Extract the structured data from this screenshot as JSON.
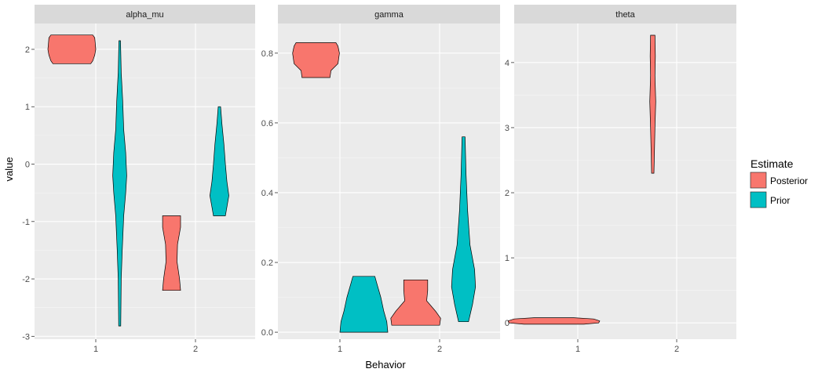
{
  "chart_data": {
    "type": "violin",
    "xlabel": "Behavior",
    "ylabel": "value",
    "x_categories": [
      "1",
      "2"
    ],
    "legend": {
      "title": "Estimate",
      "placement": "right",
      "entries": [
        {
          "name": "Posterior",
          "color": "#F8766D"
        },
        {
          "name": "Prior",
          "color": "#00BFC4"
        }
      ]
    },
    "grid": true,
    "panel_background": "#EBEBEB",
    "strip_background": "#D9D9D9",
    "facets": [
      {
        "name": "alpha_mu",
        "ylim": [
          -3.05,
          2.45
        ],
        "y_ticks": [
          -3,
          -2,
          -1,
          0,
          1,
          2
        ],
        "y_tick_labels": [
          "-3",
          "-2",
          "-1",
          "0",
          "1",
          "2"
        ],
        "violins": [
          {
            "estimate": "Posterior",
            "behavior": "1",
            "profile": [
              [
                1.75,
                0.19
              ],
              [
                1.8,
                0.21
              ],
              [
                1.9,
                0.23
              ],
              [
                2.0,
                0.24
              ],
              [
                2.1,
                0.235
              ],
              [
                2.2,
                0.23
              ],
              [
                2.25,
                0.21
              ]
            ]
          },
          {
            "estimate": "Prior",
            "behavior": "1",
            "profile": [
              [
                -2.82,
                0.01
              ],
              [
                -2.0,
                0.015
              ],
              [
                -1.5,
                0.025
              ],
              [
                -0.9,
                0.04
              ],
              [
                -0.5,
                0.06
              ],
              [
                -0.2,
                0.07
              ],
              [
                0.2,
                0.06
              ],
              [
                0.6,
                0.04
              ],
              [
                1.1,
                0.03
              ],
              [
                1.6,
                0.015
              ],
              [
                2.15,
                0.008
              ]
            ]
          },
          {
            "estimate": "Posterior",
            "behavior": "2",
            "profile": [
              [
                -2.2,
                0.09
              ],
              [
                -2.0,
                0.08
              ],
              [
                -1.7,
                0.055
              ],
              [
                -1.4,
                0.06
              ],
              [
                -1.1,
                0.09
              ],
              [
                -0.9,
                0.09
              ]
            ]
          },
          {
            "estimate": "Prior",
            "behavior": "2",
            "profile": [
              [
                -0.9,
                0.06
              ],
              [
                -0.75,
                0.075
              ],
              [
                -0.55,
                0.095
              ],
              [
                -0.3,
                0.075
              ],
              [
                0.0,
                0.06
              ],
              [
                0.35,
                0.045
              ],
              [
                0.7,
                0.025
              ],
              [
                1.0,
                0.012
              ]
            ]
          }
        ]
      },
      {
        "name": "gamma",
        "ylim": [
          -0.02,
          0.885
        ],
        "y_ticks": [
          0.0,
          0.2,
          0.4,
          0.6,
          0.8
        ],
        "y_tick_labels": [
          "0.0",
          "0.2",
          "0.4",
          "0.6",
          "0.8"
        ],
        "violins": [
          {
            "estimate": "Posterior",
            "behavior": "1",
            "profile": [
              [
                0.73,
                0.14
              ],
              [
                0.75,
                0.15
              ],
              [
                0.77,
                0.22
              ],
              [
                0.8,
                0.235
              ],
              [
                0.82,
                0.22
              ],
              [
                0.83,
                0.2
              ]
            ]
          },
          {
            "estimate": "Prior",
            "behavior": "1",
            "profile": [
              [
                0.0,
                0.24
              ],
              [
                0.03,
                0.23
              ],
              [
                0.06,
                0.2
              ],
              [
                0.1,
                0.17
              ],
              [
                0.14,
                0.13
              ],
              [
                0.16,
                0.11
              ]
            ]
          },
          {
            "estimate": "Posterior",
            "behavior": "2",
            "profile": [
              [
                0.02,
                0.24
              ],
              [
                0.04,
                0.25
              ],
              [
                0.06,
                0.2
              ],
              [
                0.09,
                0.11
              ],
              [
                0.12,
                0.12
              ],
              [
                0.15,
                0.12
              ]
            ]
          },
          {
            "estimate": "Prior",
            "behavior": "2",
            "profile": [
              [
                0.03,
                0.05
              ],
              [
                0.08,
                0.09
              ],
              [
                0.13,
                0.12
              ],
              [
                0.18,
                0.11
              ],
              [
                0.25,
                0.065
              ],
              [
                0.35,
                0.04
              ],
              [
                0.45,
                0.025
              ],
              [
                0.56,
                0.015
              ]
            ]
          }
        ]
      },
      {
        "name": "theta",
        "ylim": [
          -0.25,
          4.6
        ],
        "y_ticks": [
          0,
          1,
          2,
          3,
          4
        ],
        "y_tick_labels": [
          "0",
          "1",
          "2",
          "3",
          "4"
        ],
        "violins": [
          {
            "estimate": "Posterior",
            "behavior": "1",
            "profile": [
              [
                -0.02,
                0.3
              ],
              [
                0.0,
                0.45
              ],
              [
                0.03,
                0.46
              ],
              [
                0.06,
                0.4
              ],
              [
                0.08,
                0.2
              ]
            ]
          },
          {
            "estimate": "Posterior",
            "behavior": "2",
            "profile": [
              [
                2.3,
                0.012
              ],
              [
                2.6,
                0.016
              ],
              [
                3.0,
                0.022
              ],
              [
                3.4,
                0.03
              ],
              [
                3.8,
                0.022
              ],
              [
                4.1,
                0.026
              ],
              [
                4.42,
                0.022
              ]
            ]
          }
        ]
      }
    ]
  }
}
